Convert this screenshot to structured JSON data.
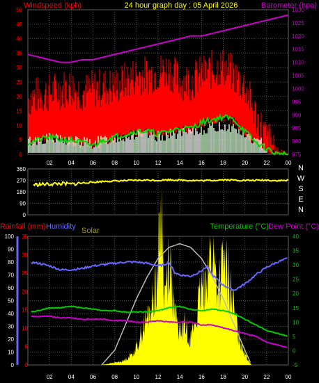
{
  "header": {
    "left_title": "Windspeed (kph)",
    "center_title": "24 hour graph day : 05 April 2026",
    "right_title": "Barometer (hpa)"
  },
  "colors": {
    "background": "#000000",
    "grid": "#555555",
    "wind_gust": "#ff0000",
    "wind_avg": "#00dd00",
    "wind_base": "#ffffff",
    "wind_light": "#ccffcc",
    "barometer": "#cc00cc",
    "direction": "#ffff00",
    "rain": "#ff0000",
    "humidity": "#6666ff",
    "solar_fill": "#ffff00",
    "solar_theory": "#aaaaaa",
    "temperature": "#00cc00",
    "dewpoint": "#cc00cc",
    "solar_label": "#999900",
    "axis_text": "#ffffff"
  },
  "x_axis": {
    "tick_labels": [
      "02",
      "04",
      "06",
      "08",
      "10",
      "12",
      "14",
      "16",
      "18",
      "20",
      "22",
      "00"
    ]
  },
  "panel3_labels": {
    "rain_label": "Rainfall (mm)",
    "humidity_label": "Humidity",
    "solar_label": "Solar",
    "temp_label": "Temperature (°C)",
    "dew_label": "Dew Point (°C)"
  },
  "chart_data": [
    {
      "type": "line",
      "title": "24 hour graph day : 05 April 2026",
      "xlabel": "",
      "ylabel": "Windspeed (kph)",
      "y2label": "Barometer (hpa)",
      "xlim": [
        0,
        24
      ],
      "ylim": [
        0,
        50
      ],
      "y2lim": [
        975,
        1030
      ],
      "y_ticks": [
        0,
        5,
        10,
        15,
        20,
        25,
        30,
        35,
        40,
        45,
        50
      ],
      "y2_ticks": [
        975,
        980,
        985,
        990,
        995,
        1000,
        1005,
        1010,
        1015,
        1020,
        1025,
        1030
      ],
      "grid": true,
      "series": [
        {
          "name": "gust",
          "x": [
            0,
            1,
            2,
            3,
            4,
            5,
            6,
            7,
            8,
            9,
            10,
            11,
            12,
            13,
            14,
            15,
            16,
            17,
            18,
            19,
            20,
            21,
            22,
            23,
            24
          ],
          "values": [
            18,
            19,
            20,
            21,
            22,
            20,
            21,
            22,
            22,
            24,
            26,
            26,
            27,
            28,
            24,
            24,
            26,
            28,
            29,
            26,
            22,
            12,
            4,
            1,
            0
          ]
        },
        {
          "name": "average",
          "x": [
            0,
            1,
            2,
            3,
            4,
            5,
            6,
            7,
            8,
            9,
            10,
            11,
            12,
            13,
            14,
            15,
            16,
            17,
            18,
            19,
            20,
            21,
            22,
            23,
            24
          ],
          "values": [
            4,
            5,
            6,
            5,
            5,
            4,
            3,
            5,
            6,
            7,
            8,
            8,
            7,
            8,
            9,
            9,
            11,
            12,
            13,
            12,
            8,
            4,
            2,
            0,
            0
          ]
        },
        {
          "name": "barometer",
          "x": [
            0,
            1,
            2,
            3,
            4,
            5,
            6,
            7,
            8,
            9,
            10,
            11,
            12,
            13,
            14,
            15,
            16,
            17,
            18,
            19,
            20,
            21,
            22,
            23,
            24
          ],
          "values": [
            1013,
            1012,
            1011,
            1010,
            1010,
            1011,
            1011,
            1012,
            1013,
            1014,
            1015,
            1016,
            1017,
            1018,
            1019,
            1020,
            1020,
            1021,
            1022,
            1023,
            1024,
            1025,
            1026,
            1027,
            1028
          ]
        }
      ]
    },
    {
      "type": "line",
      "title": "",
      "ylabel": "",
      "xlim": [
        0,
        24
      ],
      "ylim": [
        0,
        360
      ],
      "y_ticks": [
        0,
        90,
        180,
        270,
        360
      ],
      "compass_labels": [
        "N",
        "W",
        "S",
        "E",
        "N"
      ],
      "grid": true,
      "series": [
        {
          "name": "direction",
          "x": [
            0,
            1,
            2,
            3,
            4,
            5,
            6,
            7,
            8,
            9,
            10,
            11,
            12,
            13,
            14,
            15,
            16,
            17,
            18,
            19,
            20,
            21,
            22,
            23,
            24
          ],
          "values": [
            235,
            238,
            240,
            245,
            240,
            250,
            255,
            262,
            265,
            268,
            270,
            272,
            270,
            275,
            272,
            270,
            268,
            270,
            275,
            272,
            270,
            270,
            272,
            268,
            270
          ]
        }
      ]
    },
    {
      "type": "line",
      "title": "",
      "xlim": [
        0,
        24
      ],
      "rain_axis": {
        "label": "Rainfall (mm)",
        "ticks": [
          0,
          5,
          10,
          15,
          20,
          25,
          30,
          35
        ]
      },
      "humidity_axis": {
        "label": "Humidity",
        "ticks": [
          0,
          10,
          20,
          30,
          40,
          50,
          60,
          70,
          80,
          90,
          100
        ]
      },
      "temp_axis": {
        "label": "Temperature (°C)",
        "ticks": [
          -5,
          0,
          5,
          10,
          15,
          20,
          25,
          30,
          35,
          40
        ]
      },
      "grid": true,
      "series": [
        {
          "name": "humidity",
          "x": [
            0,
            1,
            2,
            3,
            4,
            5,
            6,
            7,
            8,
            9,
            10,
            11,
            12,
            12.6,
            13,
            13.5,
            14,
            15,
            16,
            16.5,
            17,
            18,
            19,
            20,
            21,
            22,
            23,
            24
          ],
          "values": [
            80,
            79,
            77,
            74,
            74,
            75,
            77,
            78,
            79,
            80,
            80,
            79,
            77,
            78,
            80,
            72,
            70,
            69,
            73,
            77,
            70,
            62,
            58,
            63,
            70,
            76,
            80,
            83
          ]
        },
        {
          "name": "temperature",
          "x": [
            0,
            1,
            2,
            3,
            4,
            5,
            6,
            7,
            8,
            9,
            10,
            11,
            12,
            13,
            14,
            15,
            16,
            17,
            18,
            19,
            20,
            21,
            22,
            23,
            24
          ],
          "values": [
            13.5,
            14,
            15,
            15,
            15.5,
            15,
            14.5,
            14,
            14,
            13.5,
            13.5,
            13.5,
            14,
            15,
            15.5,
            14.5,
            14,
            14.5,
            14,
            13,
            11,
            9,
            7,
            6,
            5
          ]
        },
        {
          "name": "dewpoint",
          "x": [
            0,
            1,
            2,
            3,
            4,
            5,
            6,
            7,
            8,
            9,
            10,
            11,
            12,
            13,
            14,
            15,
            16,
            17,
            18,
            19,
            20,
            21,
            22,
            23,
            24
          ],
          "values": [
            12,
            12,
            12,
            11.5,
            11.5,
            11,
            11,
            11,
            10.5,
            10.5,
            10,
            10,
            10.5,
            10,
            10,
            10,
            9,
            9,
            8,
            7,
            6,
            5,
            3,
            2,
            1
          ]
        },
        {
          "name": "solar",
          "x": [
            6.8,
            7.3,
            8,
            8.8,
            9.5,
            10,
            10.5,
            11,
            11.5,
            12,
            12.3,
            12.6,
            13,
            13.5,
            14,
            14.5,
            15,
            15.5,
            16,
            16.5,
            17,
            17.5,
            18,
            18.5,
            19,
            19.5,
            20.2,
            20.6
          ],
          "values": [
            0,
            0.3,
            0.7,
            1.2,
            3,
            5,
            10,
            14,
            19,
            30,
            48,
            20,
            34,
            15,
            10,
            12,
            8,
            14,
            22,
            28,
            34,
            22,
            30,
            26,
            16,
            8,
            2,
            0
          ]
        },
        {
          "name": "solar_theoretical",
          "x": [
            6.8,
            8,
            9,
            10,
            11,
            12,
            13,
            14,
            15,
            16,
            17,
            18,
            19,
            20,
            20.6
          ],
          "values": [
            0,
            4,
            11,
            18,
            24,
            29,
            32,
            33,
            32,
            29,
            24,
            18,
            11,
            4,
            0
          ]
        }
      ]
    }
  ]
}
